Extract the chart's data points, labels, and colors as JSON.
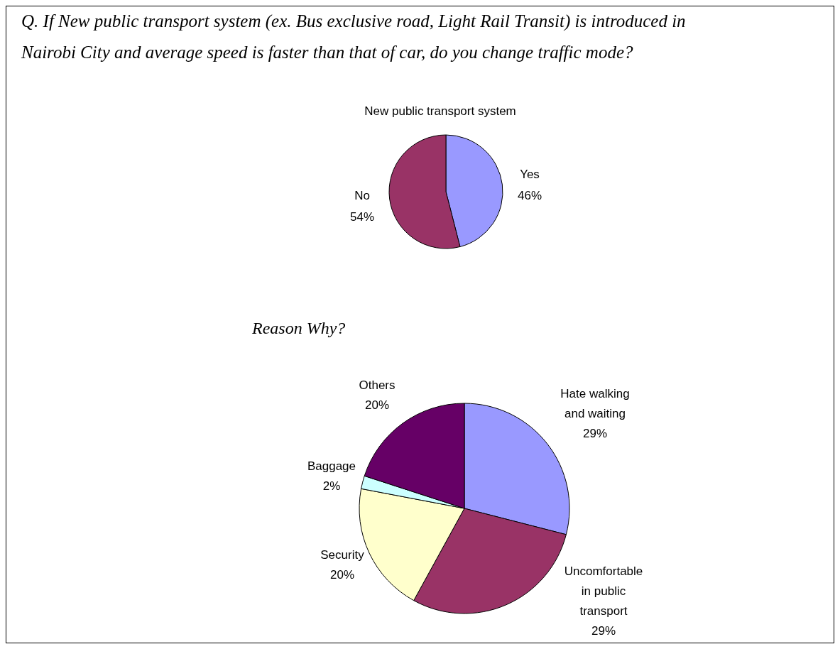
{
  "chart_data": [
    {
      "type": "pie",
      "title": "New public transport system",
      "annotations": [
        "Q. If New public transport system (ex. Bus exclusive road, Light Rail Transit) is introduced in Nairobi City and average speed is faster than that of car, do you change traffic mode?"
      ],
      "categories": [
        "Yes",
        "No"
      ],
      "values": [
        46,
        54
      ],
      "colors": [
        "#9999ff",
        "#993366"
      ],
      "value_labels": [
        "46%",
        "54%"
      ]
    },
    {
      "type": "pie",
      "title": "Reason Why?",
      "categories": [
        "Hate walking and waiting",
        "Uncomfortable in public transport",
        "Security",
        "Baggage",
        "Others"
      ],
      "values": [
        29,
        29,
        20,
        2,
        20
      ],
      "colors": [
        "#9999ff",
        "#993366",
        "#ffffcc",
        "#ccffff",
        "#660066"
      ],
      "value_labels": [
        "29%",
        "29%",
        "20%",
        "2%",
        "20%"
      ]
    }
  ]
}
